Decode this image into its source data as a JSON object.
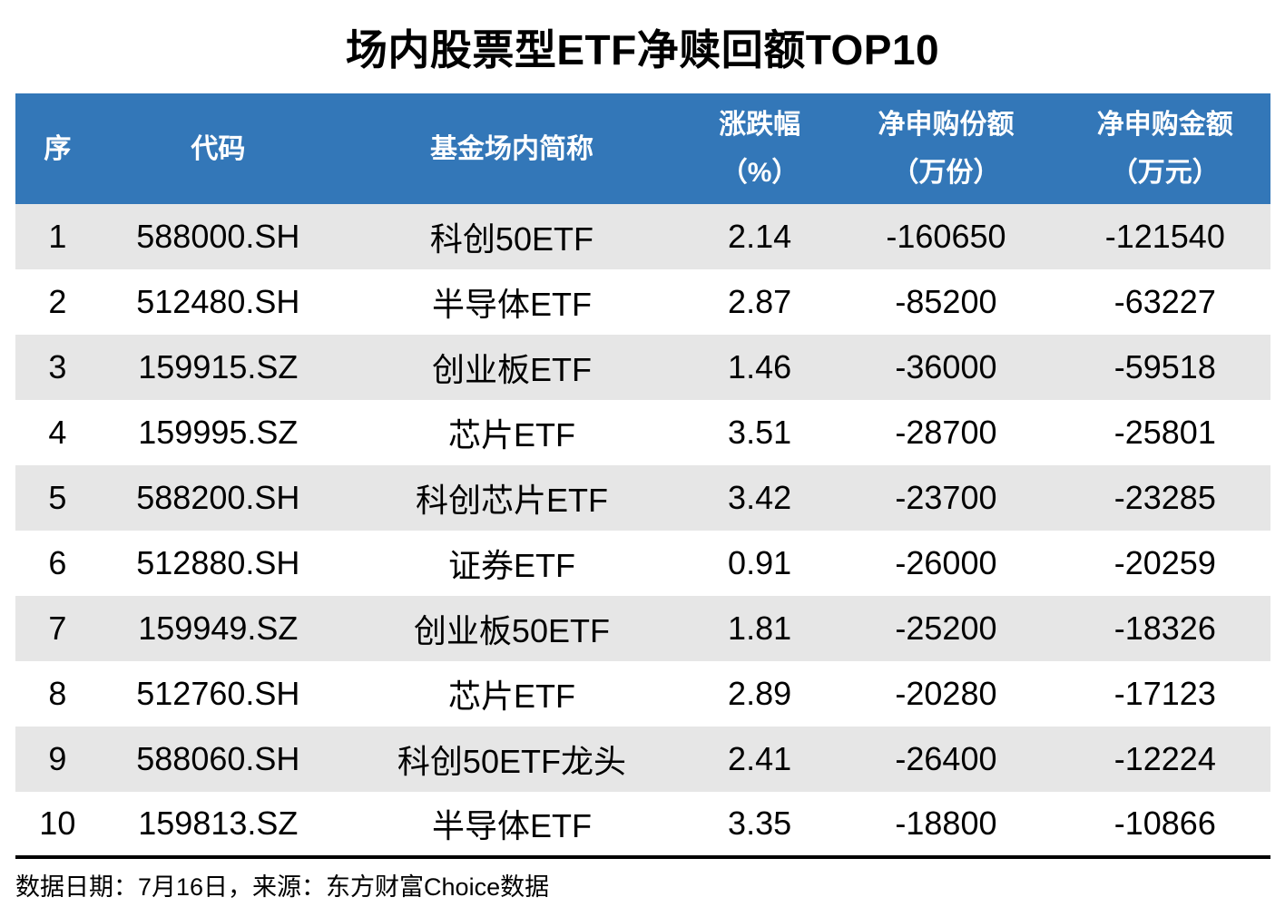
{
  "title": "场内股票型ETF净赎回额TOP10",
  "colors": {
    "header_bg": "#3377B8",
    "stripe_bg": "#E6E6E6",
    "header_text": "#FFFFFF",
    "body_text": "#000000"
  },
  "table": {
    "columns": [
      {
        "key": "seq",
        "label": "序",
        "unit": ""
      },
      {
        "key": "code",
        "label": "代码",
        "unit": ""
      },
      {
        "key": "name",
        "label": "基金场内简称",
        "unit": ""
      },
      {
        "key": "change",
        "label": "涨跌幅",
        "unit": "（%）"
      },
      {
        "key": "net-shares",
        "label": "净申购份额",
        "unit": "（万份）"
      },
      {
        "key": "net-amount",
        "label": "净申购金额",
        "unit": "（万元）"
      }
    ],
    "rows": [
      [
        "1",
        "588000.SH",
        "科创50ETF",
        "2.14",
        "-160650",
        "-121540"
      ],
      [
        "2",
        "512480.SH",
        "半导体ETF",
        "2.87",
        "-85200",
        "-63227"
      ],
      [
        "3",
        "159915.SZ",
        "创业板ETF",
        "1.46",
        "-36000",
        "-59518"
      ],
      [
        "4",
        "159995.SZ",
        "芯片ETF",
        "3.51",
        "-28700",
        "-25801"
      ],
      [
        "5",
        "588200.SH",
        "科创芯片ETF",
        "3.42",
        "-23700",
        "-23285"
      ],
      [
        "6",
        "512880.SH",
        "证券ETF",
        "0.91",
        "-26000",
        "-20259"
      ],
      [
        "7",
        "159949.SZ",
        "创业板50ETF",
        "1.81",
        "-25200",
        "-18326"
      ],
      [
        "8",
        "512760.SH",
        "芯片ETF",
        "2.89",
        "-20280",
        "-17123"
      ],
      [
        "9",
        "588060.SH",
        "科创50ETF龙头",
        "2.41",
        "-26400",
        "-12224"
      ],
      [
        "10",
        "159813.SZ",
        "半导体ETF",
        "3.35",
        "-18800",
        "-10866"
      ]
    ]
  },
  "footer": {
    "text": "数据日期：7月16日，来源：东方财富Choice数据"
  },
  "chart_data": {
    "type": "table",
    "title": "场内股票型ETF净赎回额TOP10",
    "columns": [
      "序",
      "代码",
      "基金场内简称",
      "涨跌幅（%）",
      "净申购份额（万份）",
      "净申购金额（万元）"
    ],
    "rows": [
      [
        1,
        "588000.SH",
        "科创50ETF",
        2.14,
        -160650,
        -121540
      ],
      [
        2,
        "512480.SH",
        "半导体ETF",
        2.87,
        -85200,
        -63227
      ],
      [
        3,
        "159915.SZ",
        "创业板ETF",
        1.46,
        -36000,
        -59518
      ],
      [
        4,
        "159995.SZ",
        "芯片ETF",
        3.51,
        -28700,
        -25801
      ],
      [
        5,
        "588200.SH",
        "科创芯片ETF",
        3.42,
        -23700,
        -23285
      ],
      [
        6,
        "512880.SH",
        "证券ETF",
        0.91,
        -26000,
        -20259
      ],
      [
        7,
        "159949.SZ",
        "创业板50ETF",
        1.81,
        -25200,
        -18326
      ],
      [
        8,
        "512760.SH",
        "芯片ETF",
        2.89,
        -20280,
        -17123
      ],
      [
        9,
        "588060.SH",
        "科创50ETF龙头",
        2.41,
        -26400,
        -12224
      ],
      [
        10,
        "159813.SZ",
        "半导体ETF",
        3.35,
        -18800,
        -10866
      ]
    ],
    "footnote": "数据日期：7月16日，来源：东方财富Choice数据",
    "layout": {
      "header_bg": "#3377B8",
      "stripe": "odd-rows-gray",
      "bottom_rule": "black-4px"
    }
  }
}
